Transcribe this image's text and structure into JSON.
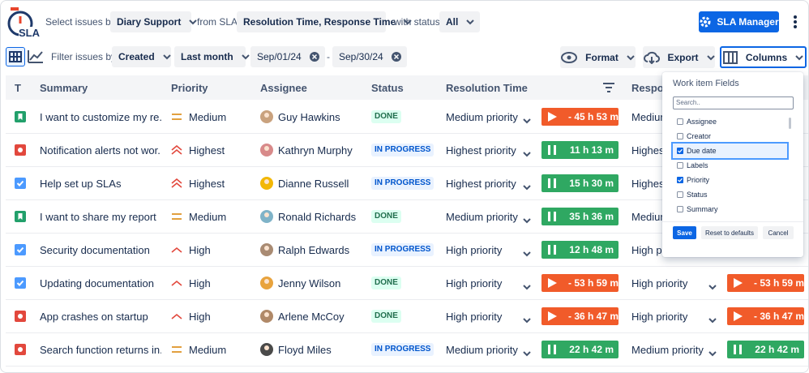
{
  "logo": "SLA",
  "toolbar": {
    "select_label": "Select issues by:",
    "select_value": "Diary Support",
    "sla_label": "from SLA:",
    "sla_value": "Resolution Time, Response Time",
    "status_label": "with status:",
    "status_value": "All",
    "manager_button": "SLA Manager"
  },
  "filter": {
    "label": "Filter issues by:",
    "field": "Created",
    "range": "Last month",
    "from": "Sep/01/24",
    "separator": "-",
    "to": "Sep/30/24"
  },
  "actions": {
    "format": "Format",
    "export": "Export",
    "columns": "Columns"
  },
  "table": {
    "headers": [
      "T",
      "Summary",
      "Priority",
      "Assignee",
      "Status",
      "Resolution Time",
      "Response Time"
    ],
    "rows": [
      {
        "type": "story",
        "summary": "I want to customize my re...",
        "priority": "Medium",
        "assignee": "Guy Hawkins",
        "status": "DONE",
        "resolution": "Medium priority",
        "resolution_timer": "- 45 h 53 m",
        "resolution_state": "overdue",
        "response": "Medium priority"
      },
      {
        "type": "bug",
        "summary": "Notification alerts not wor...",
        "priority": "Highest",
        "assignee": "Kathryn Murphy",
        "status": "IN PROGRESS",
        "resolution": "Highest priority",
        "resolution_timer": "11 h 13 m",
        "resolution_state": "running",
        "response": "Highest priority"
      },
      {
        "type": "task",
        "summary": "Help set up SLAs",
        "priority": "Highest",
        "assignee": "Dianne Russell",
        "status": "IN PROGRESS",
        "resolution": "Highest priority",
        "resolution_timer": "15 h 30 m",
        "resolution_state": "running",
        "response": "Highest priority"
      },
      {
        "type": "story",
        "summary": "I want to share my report",
        "priority": "Medium",
        "assignee": "Ronald Richards",
        "status": "DONE",
        "resolution": "Medium priority",
        "resolution_timer": "35 h 36 m",
        "resolution_state": "running",
        "response": "Medium priority"
      },
      {
        "type": "task",
        "summary": "Security documentation",
        "priority": "High",
        "assignee": "Ralph Edwards",
        "status": "IN PROGRESS",
        "resolution": "High priority",
        "resolution_timer": "12 h 48 m",
        "resolution_state": "running",
        "response": "High priority"
      },
      {
        "type": "task",
        "summary": "Updating documentation",
        "priority": "High",
        "assignee": "Jenny Wilson",
        "status": "DONE",
        "resolution": "High priority",
        "resolution_timer": "- 53 h 59 m",
        "resolution_state": "overdue",
        "response": "High priority",
        "response_timer": "- 53 h 59 m",
        "response_state": "overdue"
      },
      {
        "type": "bug",
        "summary": "App crashes on startup",
        "priority": "High",
        "assignee": "Arlene McCoy",
        "status": "DONE",
        "resolution": "High priority",
        "resolution_timer": "- 36 h 47 m",
        "resolution_state": "overdue",
        "response": "High priority",
        "response_timer": "- 36 h 47 m",
        "response_state": "overdue"
      },
      {
        "type": "bug",
        "summary": "Search function returns in...",
        "priority": "Medium",
        "assignee": "Floyd Miles",
        "status": "IN PROGRESS",
        "resolution": "Medium priority",
        "resolution_timer": "22 h 42 m",
        "resolution_state": "running",
        "response": "Medium priority",
        "response_timer": "22 h 42 m",
        "response_state": "running"
      }
    ]
  },
  "columns_panel": {
    "title": "Work item Fields",
    "search_placeholder": "Search..",
    "fields": [
      {
        "label": "Assignee",
        "checked": false
      },
      {
        "label": "Creator",
        "checked": false
      },
      {
        "label": "Due date",
        "checked": true,
        "focused": true
      },
      {
        "label": "Labels",
        "checked": false
      },
      {
        "label": "Priority",
        "checked": true
      },
      {
        "label": "Status",
        "checked": false
      },
      {
        "label": "Summary",
        "checked": false
      }
    ],
    "save": "Save",
    "reset": "Reset to defaults",
    "cancel": "Cancel"
  }
}
